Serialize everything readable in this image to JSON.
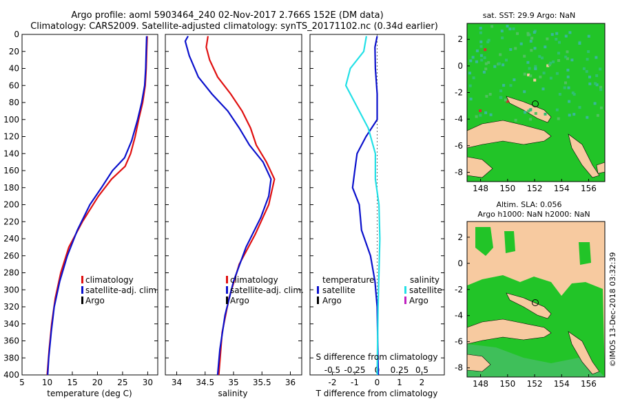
{
  "header": {
    "line1": "Argo profile: aoml 5903464_240 02-Nov-2017 2.766S 152E (DM data)",
    "line2": "Climatology: CARS2009. Satellite-adjusted climatology: synTS_20171102.nc (0.34d earlier)"
  },
  "side_stamp": "©IMOS 13-Dec-2018 03:32:39",
  "colors": {
    "climatology": "#e01010",
    "satellite": "#0a10cc",
    "argo": "#000000",
    "sal_satellite": "#22e0e6",
    "sal_argo": "#c020c0",
    "ocean": "#22c428",
    "land": "#f7caa0"
  },
  "chart_data": [
    {
      "type": "line",
      "id": "temperature",
      "xlabel": "temperature (deg C)",
      "ylabel": "",
      "xlim": [
        5,
        32
      ],
      "ylim": [
        400,
        0
      ],
      "xticks": [
        5,
        10,
        15,
        20,
        25,
        30
      ],
      "yticks": [
        0,
        20,
        40,
        60,
        80,
        100,
        120,
        140,
        160,
        180,
        200,
        220,
        240,
        260,
        280,
        300,
        320,
        340,
        360,
        380,
        400
      ],
      "legend": [
        "climatology",
        "satellite-adj. clim.",
        "Argo"
      ],
      "series": [
        {
          "name": "climatology",
          "color": "#e01010",
          "points": [
            [
              29.9,
              2
            ],
            [
              29.8,
              20
            ],
            [
              29.7,
              40
            ],
            [
              29.5,
              60
            ],
            [
              29.0,
              80
            ],
            [
              28.2,
              100
            ],
            [
              27.5,
              120
            ],
            [
              26.6,
              140
            ],
            [
              25.5,
              155
            ],
            [
              22.8,
              170
            ],
            [
              20.2,
              190
            ],
            [
              17.0,
              220
            ],
            [
              14.3,
              250
            ],
            [
              12.7,
              280
            ],
            [
              11.6,
              310
            ],
            [
              10.9,
              340
            ],
            [
              10.4,
              370
            ],
            [
              10.0,
              400
            ]
          ]
        },
        {
          "name": "satellite-adj. clim.",
          "color": "#0a10cc",
          "points": [
            [
              29.8,
              2
            ],
            [
              29.7,
              20
            ],
            [
              29.6,
              40
            ],
            [
              29.4,
              60
            ],
            [
              28.8,
              80
            ],
            [
              28.0,
              100
            ],
            [
              26.8,
              125
            ],
            [
              25.4,
              145
            ],
            [
              23.0,
              160
            ],
            [
              20.8,
              180
            ],
            [
              18.5,
              200
            ],
            [
              16.0,
              230
            ],
            [
              14.0,
              260
            ],
            [
              12.5,
              290
            ],
            [
              11.4,
              320
            ],
            [
              10.8,
              350
            ],
            [
              10.3,
              380
            ],
            [
              10.1,
              400
            ]
          ]
        }
      ]
    },
    {
      "type": "line",
      "id": "salinity",
      "xlabel": "salinity",
      "ylabel": "",
      "xlim": [
        33.8,
        36.2
      ],
      "ylim": [
        400,
        0
      ],
      "xticks": [
        34,
        34.5,
        35,
        35.5,
        36
      ],
      "legend": [
        "climatology",
        "satellite-adj. clim.",
        "Argo"
      ],
      "series": [
        {
          "name": "climatology",
          "color": "#e01010",
          "points": [
            [
              34.55,
              2
            ],
            [
              34.52,
              15
            ],
            [
              34.58,
              30
            ],
            [
              34.72,
              50
            ],
            [
              34.95,
              70
            ],
            [
              35.15,
              90
            ],
            [
              35.3,
              110
            ],
            [
              35.4,
              130
            ],
            [
              35.58,
              150
            ],
            [
              35.72,
              170
            ],
            [
              35.62,
              200
            ],
            [
              35.38,
              235
            ],
            [
              35.1,
              270
            ],
            [
              34.92,
              310
            ],
            [
              34.8,
              350
            ],
            [
              34.74,
              400
            ]
          ]
        },
        {
          "name": "satellite-adj. clim.",
          "color": "#0a10cc",
          "points": [
            [
              34.2,
              2
            ],
            [
              34.15,
              8
            ],
            [
              34.22,
              25
            ],
            [
              34.38,
              50
            ],
            [
              34.62,
              70
            ],
            [
              34.9,
              90
            ],
            [
              35.1,
              110
            ],
            [
              35.28,
              130
            ],
            [
              35.52,
              150
            ],
            [
              35.66,
              170
            ],
            [
              35.62,
              190
            ],
            [
              35.48,
              215
            ],
            [
              35.22,
              250
            ],
            [
              35.0,
              290
            ],
            [
              34.85,
              330
            ],
            [
              34.76,
              370
            ],
            [
              34.72,
              400
            ]
          ]
        }
      ]
    },
    {
      "type": "line",
      "id": "difference",
      "xlabel": "T difference from climatology",
      "x2label": "S difference from climatology",
      "xlim": [
        -3,
        3
      ],
      "ylim": [
        400,
        0
      ],
      "xticks": [
        -2,
        -1,
        0,
        1,
        2
      ],
      "x2ticks": [
        -0.5,
        -0.25,
        0,
        0.25,
        0.5
      ],
      "legend_left_title": "temperature",
      "legend_right_title": "salinity",
      "legend_left": [
        "satellite",
        "Argo"
      ],
      "legend_right": [
        "satellite",
        "Argo"
      ],
      "series": [
        {
          "name": "temperature satellite",
          "color": "#0a10cc",
          "points": [
            [
              0,
              2
            ],
            [
              -0.1,
              15
            ],
            [
              -0.08,
              40
            ],
            [
              0,
              70
            ],
            [
              0,
              100
            ],
            [
              -0.5,
              120
            ],
            [
              -0.9,
              140
            ],
            [
              -1.0,
              160
            ],
            [
              -1.1,
              180
            ],
            [
              -0.8,
              200
            ],
            [
              -0.7,
              230
            ],
            [
              -0.3,
              260
            ],
            [
              -0.1,
              290
            ],
            [
              0,
              320
            ],
            [
              0.05,
              400
            ]
          ]
        },
        {
          "name": "salinity satellite",
          "color": "#22e0e6",
          "points": [
            [
              -0.12,
              2
            ],
            [
              -0.15,
              20
            ],
            [
              -0.3,
              40
            ],
            [
              -0.35,
              60
            ],
            [
              -0.25,
              80
            ],
            [
              -0.1,
              110
            ],
            [
              -0.02,
              140
            ],
            [
              -0.02,
              170
            ],
            [
              0.02,
              200
            ],
            [
              0.03,
              240
            ],
            [
              0.02,
              280
            ],
            [
              0.01,
              320
            ],
            [
              0,
              400
            ]
          ]
        }
      ]
    }
  ],
  "maps": [
    {
      "title": "sat. SST: 29.9 Argo: NaN",
      "subtitle": "",
      "xticks": [
        "148",
        "150",
        "152",
        "154",
        "156"
      ],
      "yticks": [
        "2",
        "0",
        "-2",
        "-4",
        "-6",
        "-8"
      ]
    },
    {
      "title": "Altim. SLA: 0.056",
      "subtitle": "Argo h1000: NaN h2000: NaN",
      "xticks": [
        "148",
        "150",
        "152",
        "154",
        "156"
      ],
      "yticks": [
        "2",
        "0",
        "-2",
        "-4",
        "-6",
        "-8"
      ]
    }
  ]
}
